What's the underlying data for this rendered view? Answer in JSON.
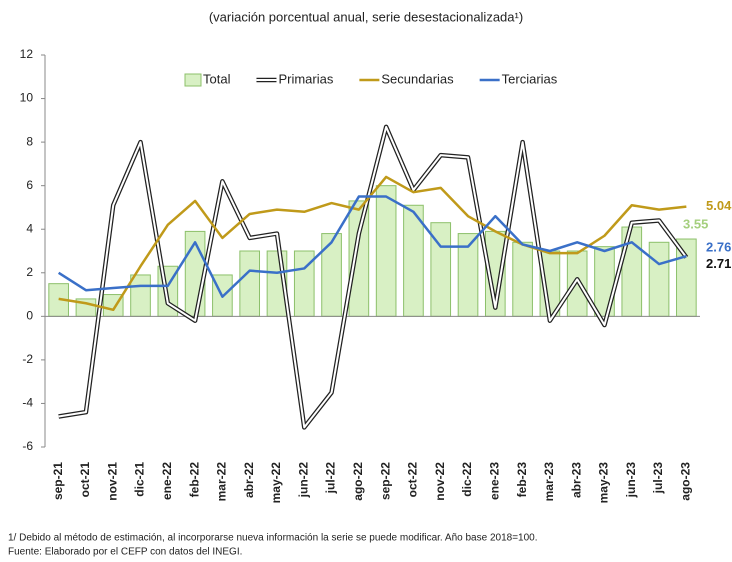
{
  "chart_data": {
    "type": "combo",
    "title": "(variación porcentual anual, serie desestacionalizada¹)",
    "footnotes": [
      "1/ Debido al método de estimación, al incorporarse nueva información la serie se puede modificar. Año base 2018=100.",
      "Fuente: Elaborado por el CEFP con datos del INEGI."
    ],
    "categories": [
      "sep-21",
      "oct-21",
      "nov-21",
      "dic-21",
      "ene-22",
      "feb-22",
      "mar-22",
      "abr-22",
      "may-22",
      "jun-22",
      "jul-22",
      "ago-22",
      "sep-22",
      "oct-22",
      "nov-22",
      "dic-22",
      "ene-23",
      "feb-23",
      "mar-23",
      "abr-23",
      "may-23",
      "jun-23",
      "jul-23",
      "ago-23"
    ],
    "series": [
      {
        "name": "Total",
        "kind": "bar",
        "color": "#d8f0c4",
        "values": [
          1.5,
          0.8,
          1.0,
          1.9,
          2.3,
          3.9,
          1.9,
          3.0,
          3.0,
          3.0,
          3.8,
          5.3,
          6.0,
          5.1,
          4.3,
          3.8,
          3.9,
          3.4,
          3.0,
          3.0,
          3.2,
          4.1,
          3.4,
          3.55
        ]
      },
      {
        "name": "Primarias",
        "kind": "line",
        "line_style": "double",
        "color": "#222222",
        "values": [
          -4.6,
          -4.4,
          5.1,
          8.0,
          0.6,
          -0.2,
          6.2,
          3.6,
          3.8,
          -5.1,
          -3.5,
          3.8,
          8.7,
          5.8,
          7.4,
          7.3,
          0.4,
          8.0,
          -0.2,
          1.7,
          -0.4,
          4.3,
          4.4,
          2.71
        ]
      },
      {
        "name": "Secundarias",
        "kind": "line",
        "color": "#c09a1a",
        "values": [
          0.8,
          0.6,
          0.3,
          2.3,
          4.2,
          5.3,
          3.6,
          4.7,
          4.9,
          4.8,
          5.2,
          4.9,
          6.4,
          5.7,
          5.9,
          4.6,
          3.9,
          3.3,
          2.9,
          2.9,
          3.7,
          5.1,
          4.9,
          5.04
        ]
      },
      {
        "name": "Terciarias",
        "kind": "line",
        "color": "#3a70c8",
        "values": [
          2.0,
          1.2,
          1.3,
          1.4,
          1.4,
          3.4,
          0.9,
          2.1,
          2.0,
          2.2,
          3.4,
          5.5,
          5.5,
          4.8,
          3.2,
          3.2,
          4.6,
          3.3,
          3.0,
          3.4,
          3.0,
          3.4,
          2.4,
          2.76
        ]
      }
    ],
    "ylim": [
      -6,
      12
    ],
    "yticks": [
      -6,
      -4,
      -2,
      0,
      2,
      4,
      6,
      8,
      10,
      12
    ],
    "grid": false,
    "legend": "top"
  }
}
